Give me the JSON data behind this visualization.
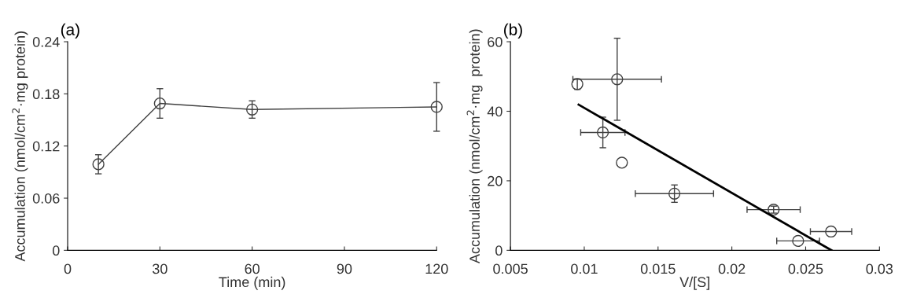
{
  "chart_data": [
    {
      "type": "line",
      "title": "(a)",
      "xlabel": "Time (min)",
      "ylabel": "Accumulation (nmol/cm$^{2}$·mg protein)",
      "x": [
        10,
        30,
        60,
        120
      ],
      "series": [
        {
          "color": "#404040",
          "values": [
            0.099,
            0.169,
            0.162,
            0.165
          ],
          "errors": [
            0.011,
            0.017,
            0.01,
            0.028
          ]
        }
      ],
      "xlim": [
        0,
        120
      ],
      "xticks": [
        0,
        30,
        60,
        90,
        120
      ],
      "ylim": [
        0,
        0.24
      ],
      "yticks": [
        {
          "value": 0,
          "label": "0"
        },
        0.06,
        0.12,
        0.18,
        0.24
      ],
      "marker": "circle",
      "line_style": "solid",
      "grid": false,
      "legend": false
    },
    {
      "type": "scatter",
      "title": "(b)",
      "xlabel": "V/[S]",
      "ylabel": "Accumulation (nmol/cm$^{2}$·mg  protein)",
      "series": [
        {
          "type": "scatter",
          "color": "#404040",
          "x": [
            0.00953,
            0.01223,
            0.01126,
            0.01255,
            0.01611,
            0.02283,
            0.02449,
            0.02672
          ],
          "values": [
            47.8,
            49.2,
            33.9,
            25.2,
            16.3,
            11.7,
            2.7,
            5.4
          ],
          "errors": [
            1.5,
            11.8,
            4.4,
            null,
            2.5,
            1.0,
            null,
            null
          ],
          "xerrors": [
            null,
            0.003,
            0.0015,
            null,
            0.00265,
            0.0018,
            0.00145,
            0.0014
          ]
        },
        {
          "type": "line",
          "marker": "none",
          "color": "#000000",
          "x": [
            0.00962,
            0.02675
          ],
          "values": [
            41.9,
            0
          ]
        }
      ],
      "xlim": [
        0.005,
        0.03
      ],
      "xticks": [
        0.005,
        0.01,
        0.015,
        0.02,
        0.025,
        0.03
      ],
      "ylim": [
        0,
        60
      ],
      "yticks": [
        0,
        20,
        40,
        60
      ],
      "marker": "circle",
      "grid": false,
      "legend": false
    }
  ]
}
